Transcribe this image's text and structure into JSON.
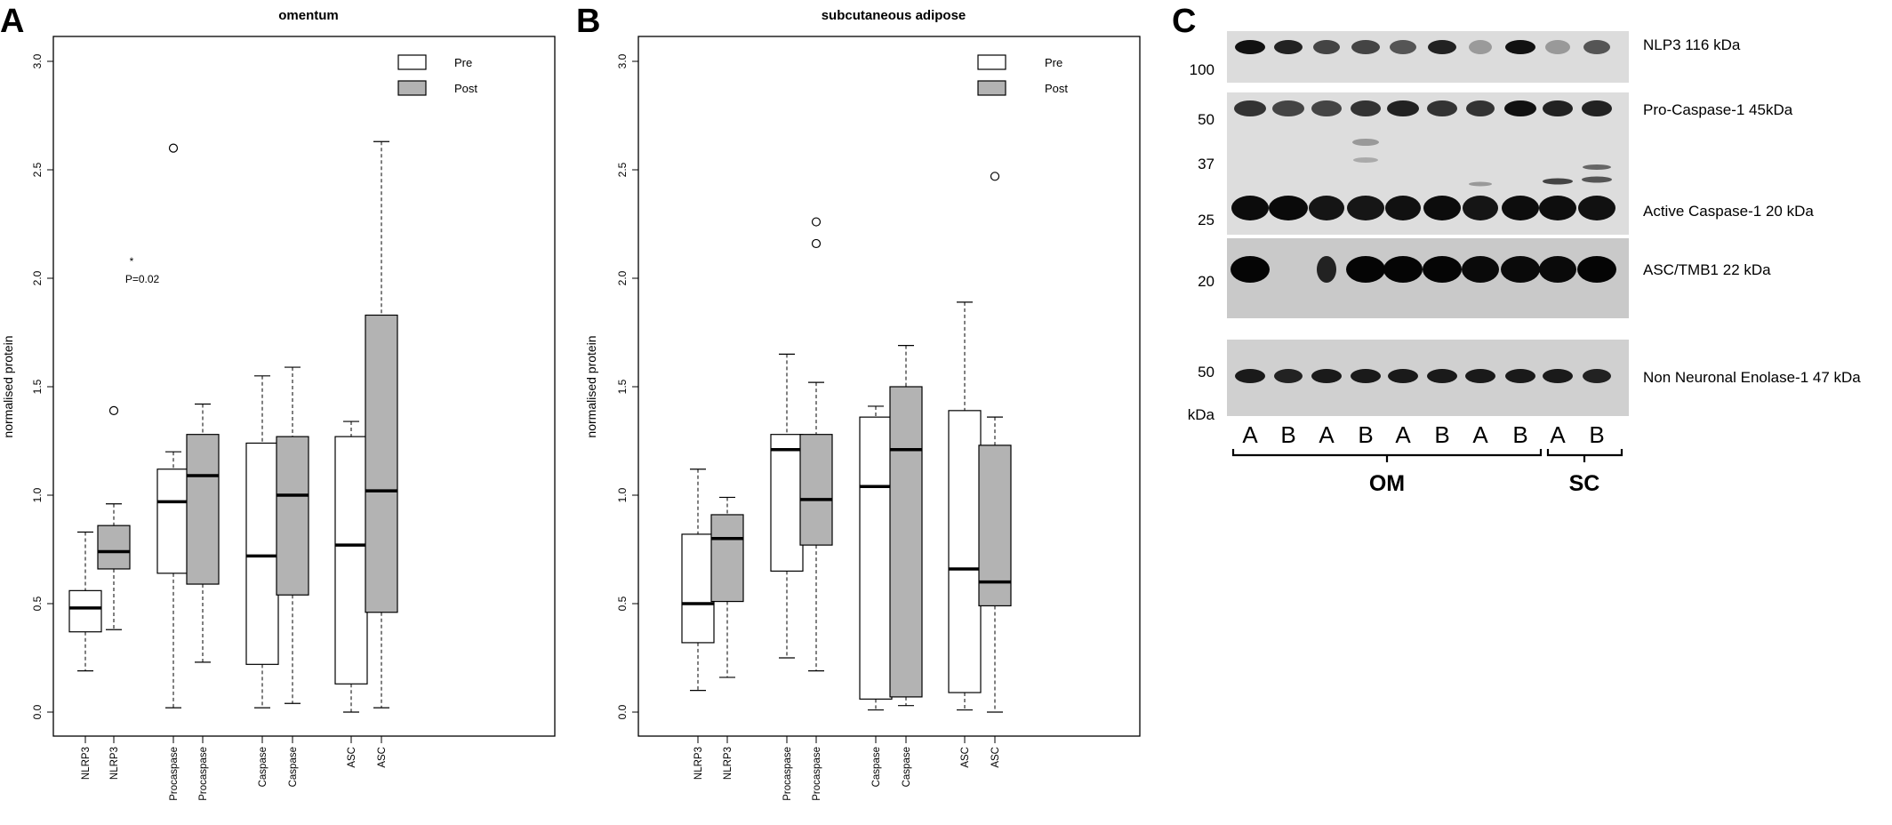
{
  "panels": {
    "A": {
      "letter": "A",
      "title": "omentum",
      "ylabel": "normalised protein",
      "yticks": [
        "0.0",
        "0.5",
        "1.0",
        "1.5",
        "2.0",
        "2.5",
        "3.0"
      ],
      "legend": [
        "Pre",
        "Post"
      ],
      "annotation": {
        "star": "*",
        "pvalue": "P=0.02"
      }
    },
    "B": {
      "letter": "B",
      "title": "subcutaneous adipose",
      "ylabel": "normalised protein",
      "yticks": [
        "0.0",
        "0.5",
        "1.0",
        "1.5",
        "2.0",
        "2.5",
        "3.0"
      ],
      "legend": [
        "Pre",
        "Post"
      ]
    },
    "C": {
      "letter": "C",
      "band_labels": [
        "NLP3 116 kDa",
        "Pro-Caspase-1 45kDa",
        "Active Caspase-1 20 kDa",
        "ASC/TMB1 22 kDa",
        "Non Neuronal Enolase-1 47 kDa"
      ],
      "mw_markers": [
        "100",
        "50",
        "37",
        "25",
        "20",
        "50",
        "kDa"
      ],
      "lanes": [
        "A",
        "B",
        "A",
        "B",
        "A",
        "B",
        "A",
        "B",
        "A",
        "B"
      ],
      "groups": [
        "OM",
        "SC"
      ]
    }
  },
  "chart_data": [
    {
      "type": "box",
      "title": "omentum",
      "ylabel": "normalised protein",
      "ylim": [
        0,
        3.0
      ],
      "legend_position": "top-right",
      "colors": {
        "Pre": "#ffffff",
        "Post": "#b3b3b3"
      },
      "categories": [
        "NLRP3",
        "NLRP3",
        "Procaspase",
        "Procaspase",
        "Caspase",
        "Caspase",
        "ASC",
        "ASC"
      ],
      "series": [
        {
          "name": "Pre",
          "boxes": [
            {
              "category": "NLRP3",
              "whisker_low": 0.19,
              "q1": 0.37,
              "median": 0.48,
              "q3": 0.56,
              "whisker_high": 0.83,
              "outliers": []
            },
            {
              "category": "Procaspase",
              "whisker_low": 0.02,
              "q1": 0.64,
              "median": 0.97,
              "q3": 1.12,
              "whisker_high": 1.2,
              "outliers": [
                2.6
              ]
            },
            {
              "category": "Caspase",
              "whisker_low": 0.02,
              "q1": 0.22,
              "median": 0.72,
              "q3": 1.24,
              "whisker_high": 1.55,
              "outliers": []
            },
            {
              "category": "ASC",
              "whisker_low": 0.0,
              "q1": 0.13,
              "median": 0.77,
              "q3": 1.27,
              "whisker_high": 1.34,
              "outliers": []
            }
          ]
        },
        {
          "name": "Post",
          "boxes": [
            {
              "category": "NLRP3",
              "whisker_low": 0.38,
              "q1": 0.66,
              "median": 0.74,
              "q3": 0.86,
              "whisker_high": 0.96,
              "outliers": [
                1.39
              ]
            },
            {
              "category": "Procaspase",
              "whisker_low": 0.23,
              "q1": 0.59,
              "median": 1.09,
              "q3": 1.28,
              "whisker_high": 1.42,
              "outliers": []
            },
            {
              "category": "Caspase",
              "whisker_low": 0.04,
              "q1": 0.54,
              "median": 1.0,
              "q3": 1.27,
              "whisker_high": 1.59,
              "outliers": []
            },
            {
              "category": "ASC",
              "whisker_low": 0.02,
              "q1": 0.46,
              "median": 1.02,
              "q3": 1.83,
              "whisker_high": 2.63,
              "outliers": []
            }
          ]
        }
      ]
    },
    {
      "type": "box",
      "title": "subcutaneous adipose",
      "ylabel": "normalised protein",
      "ylim": [
        0,
        3.0
      ],
      "legend_position": "top-right",
      "colors": {
        "Pre": "#ffffff",
        "Post": "#b3b3b3"
      },
      "categories": [
        "NLRP3",
        "NLRP3",
        "Procaspase",
        "Procaspase",
        "Caspase",
        "Caspase",
        "ASC",
        "ASC"
      ],
      "series": [
        {
          "name": "Pre",
          "boxes": [
            {
              "category": "NLRP3",
              "whisker_low": 0.1,
              "q1": 0.32,
              "median": 0.5,
              "q3": 0.82,
              "whisker_high": 1.12,
              "outliers": []
            },
            {
              "category": "Procaspase",
              "whisker_low": 0.25,
              "q1": 0.65,
              "median": 1.21,
              "q3": 1.28,
              "whisker_high": 1.65,
              "outliers": []
            },
            {
              "category": "Caspase",
              "whisker_low": 0.01,
              "q1": 0.06,
              "median": 1.04,
              "q3": 1.36,
              "whisker_high": 1.41,
              "outliers": []
            },
            {
              "category": "ASC",
              "whisker_low": 0.01,
              "q1": 0.09,
              "median": 0.66,
              "q3": 1.39,
              "whisker_high": 1.89,
              "outliers": []
            }
          ]
        },
        {
          "name": "Post",
          "boxes": [
            {
              "category": "NLRP3",
              "whisker_low": 0.16,
              "q1": 0.51,
              "median": 0.8,
              "q3": 0.91,
              "whisker_high": 0.99,
              "outliers": []
            },
            {
              "category": "Procaspase",
              "whisker_low": 0.19,
              "q1": 0.77,
              "median": 0.98,
              "q3": 1.28,
              "whisker_high": 1.52,
              "outliers": [
                2.16,
                2.26
              ]
            },
            {
              "category": "Caspase",
              "whisker_low": 0.03,
              "q1": 0.07,
              "median": 1.21,
              "q3": 1.5,
              "whisker_high": 1.69,
              "outliers": []
            },
            {
              "category": "ASC",
              "whisker_low": 0.0,
              "q1": 0.49,
              "median": 0.6,
              "q3": 1.23,
              "whisker_high": 1.36,
              "outliers": [
                2.47
              ]
            }
          ]
        }
      ]
    }
  ]
}
